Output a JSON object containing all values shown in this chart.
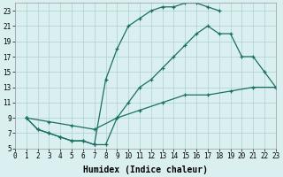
{
  "line1_x": [
    1,
    2,
    3,
    4,
    5,
    6,
    7,
    8,
    9,
    10,
    11,
    12,
    13,
    14,
    15,
    16,
    17,
    18
  ],
  "line1_y": [
    9,
    7.5,
    7,
    6.5,
    6,
    6,
    5.5,
    14,
    18,
    21,
    22,
    23,
    23.5,
    23.5,
    24,
    24,
    23.5,
    23
  ],
  "line2_x": [
    1,
    2,
    3,
    4,
    5,
    6,
    7,
    8,
    9,
    10,
    11,
    12,
    13,
    14,
    15,
    16,
    17,
    18,
    19,
    20,
    21,
    22,
    23
  ],
  "line2_y": [
    9,
    7.5,
    7,
    6.5,
    6,
    6,
    5.5,
    5.5,
    9,
    11,
    13,
    14,
    15.5,
    17,
    18.5,
    20,
    21,
    20,
    20,
    17,
    17,
    15,
    13
  ],
  "line3_x": [
    1,
    3,
    5,
    7,
    9,
    11,
    13,
    15,
    17,
    19,
    21,
    23
  ],
  "line3_y": [
    9,
    8.5,
    8,
    7.5,
    9,
    10,
    11,
    12,
    12,
    12.5,
    13,
    13
  ],
  "color": "#1a7060",
  "bg_color": "#daf0f0",
  "grid_color": "#afd0d0",
  "xlabel": "Humidex (Indice chaleur)",
  "xlim": [
    0,
    23
  ],
  "ylim": [
    5,
    24
  ],
  "xticks": [
    0,
    1,
    2,
    3,
    4,
    5,
    6,
    7,
    8,
    9,
    10,
    11,
    12,
    13,
    14,
    15,
    16,
    17,
    18,
    19,
    20,
    21,
    22,
    23
  ],
  "yticks": [
    5,
    7,
    9,
    11,
    13,
    15,
    17,
    19,
    21,
    23
  ],
  "tick_fontsize": 5.5,
  "xlabel_fontsize": 7,
  "marker": "+"
}
